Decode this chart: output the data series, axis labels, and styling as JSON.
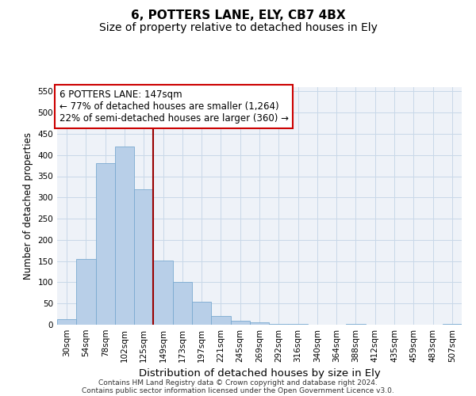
{
  "title": "6, POTTERS LANE, ELY, CB7 4BX",
  "subtitle": "Size of property relative to detached houses in Ely",
  "xlabel": "Distribution of detached houses by size in Ely",
  "ylabel": "Number of detached properties",
  "categories": [
    "30sqm",
    "54sqm",
    "78sqm",
    "102sqm",
    "125sqm",
    "149sqm",
    "173sqm",
    "197sqm",
    "221sqm",
    "245sqm",
    "269sqm",
    "292sqm",
    "316sqm",
    "340sqm",
    "364sqm",
    "388sqm",
    "412sqm",
    "435sqm",
    "459sqm",
    "483sqm",
    "507sqm"
  ],
  "values": [
    13,
    155,
    380,
    420,
    320,
    152,
    100,
    55,
    20,
    10,
    5,
    2,
    1,
    0,
    0,
    1,
    0,
    0,
    0,
    0,
    1
  ],
  "bar_color": "#b8cfe8",
  "bar_edge_color": "#7aaad0",
  "grid_color": "#c8d8e8",
  "background_color": "#eef2f8",
  "vline_x": 5,
  "vline_color": "#990000",
  "annotation_line1": "6 POTTERS LANE: 147sqm",
  "annotation_line2": "← 77% of detached houses are smaller (1,264)",
  "annotation_line3": "22% of semi-detached houses are larger (360) →",
  "annotation_box_color": "#ffffff",
  "annotation_border_color": "#cc0000",
  "ylim": [
    0,
    560
  ],
  "yticks": [
    0,
    50,
    100,
    150,
    200,
    250,
    300,
    350,
    400,
    450,
    500,
    550
  ],
  "footer_line1": "Contains HM Land Registry data © Crown copyright and database right 2024.",
  "footer_line2": "Contains public sector information licensed under the Open Government Licence v3.0.",
  "title_fontsize": 11,
  "subtitle_fontsize": 10,
  "xlabel_fontsize": 9.5,
  "ylabel_fontsize": 8.5,
  "tick_fontsize": 7.5,
  "annotation_fontsize": 8.5,
  "footer_fontsize": 6.5
}
